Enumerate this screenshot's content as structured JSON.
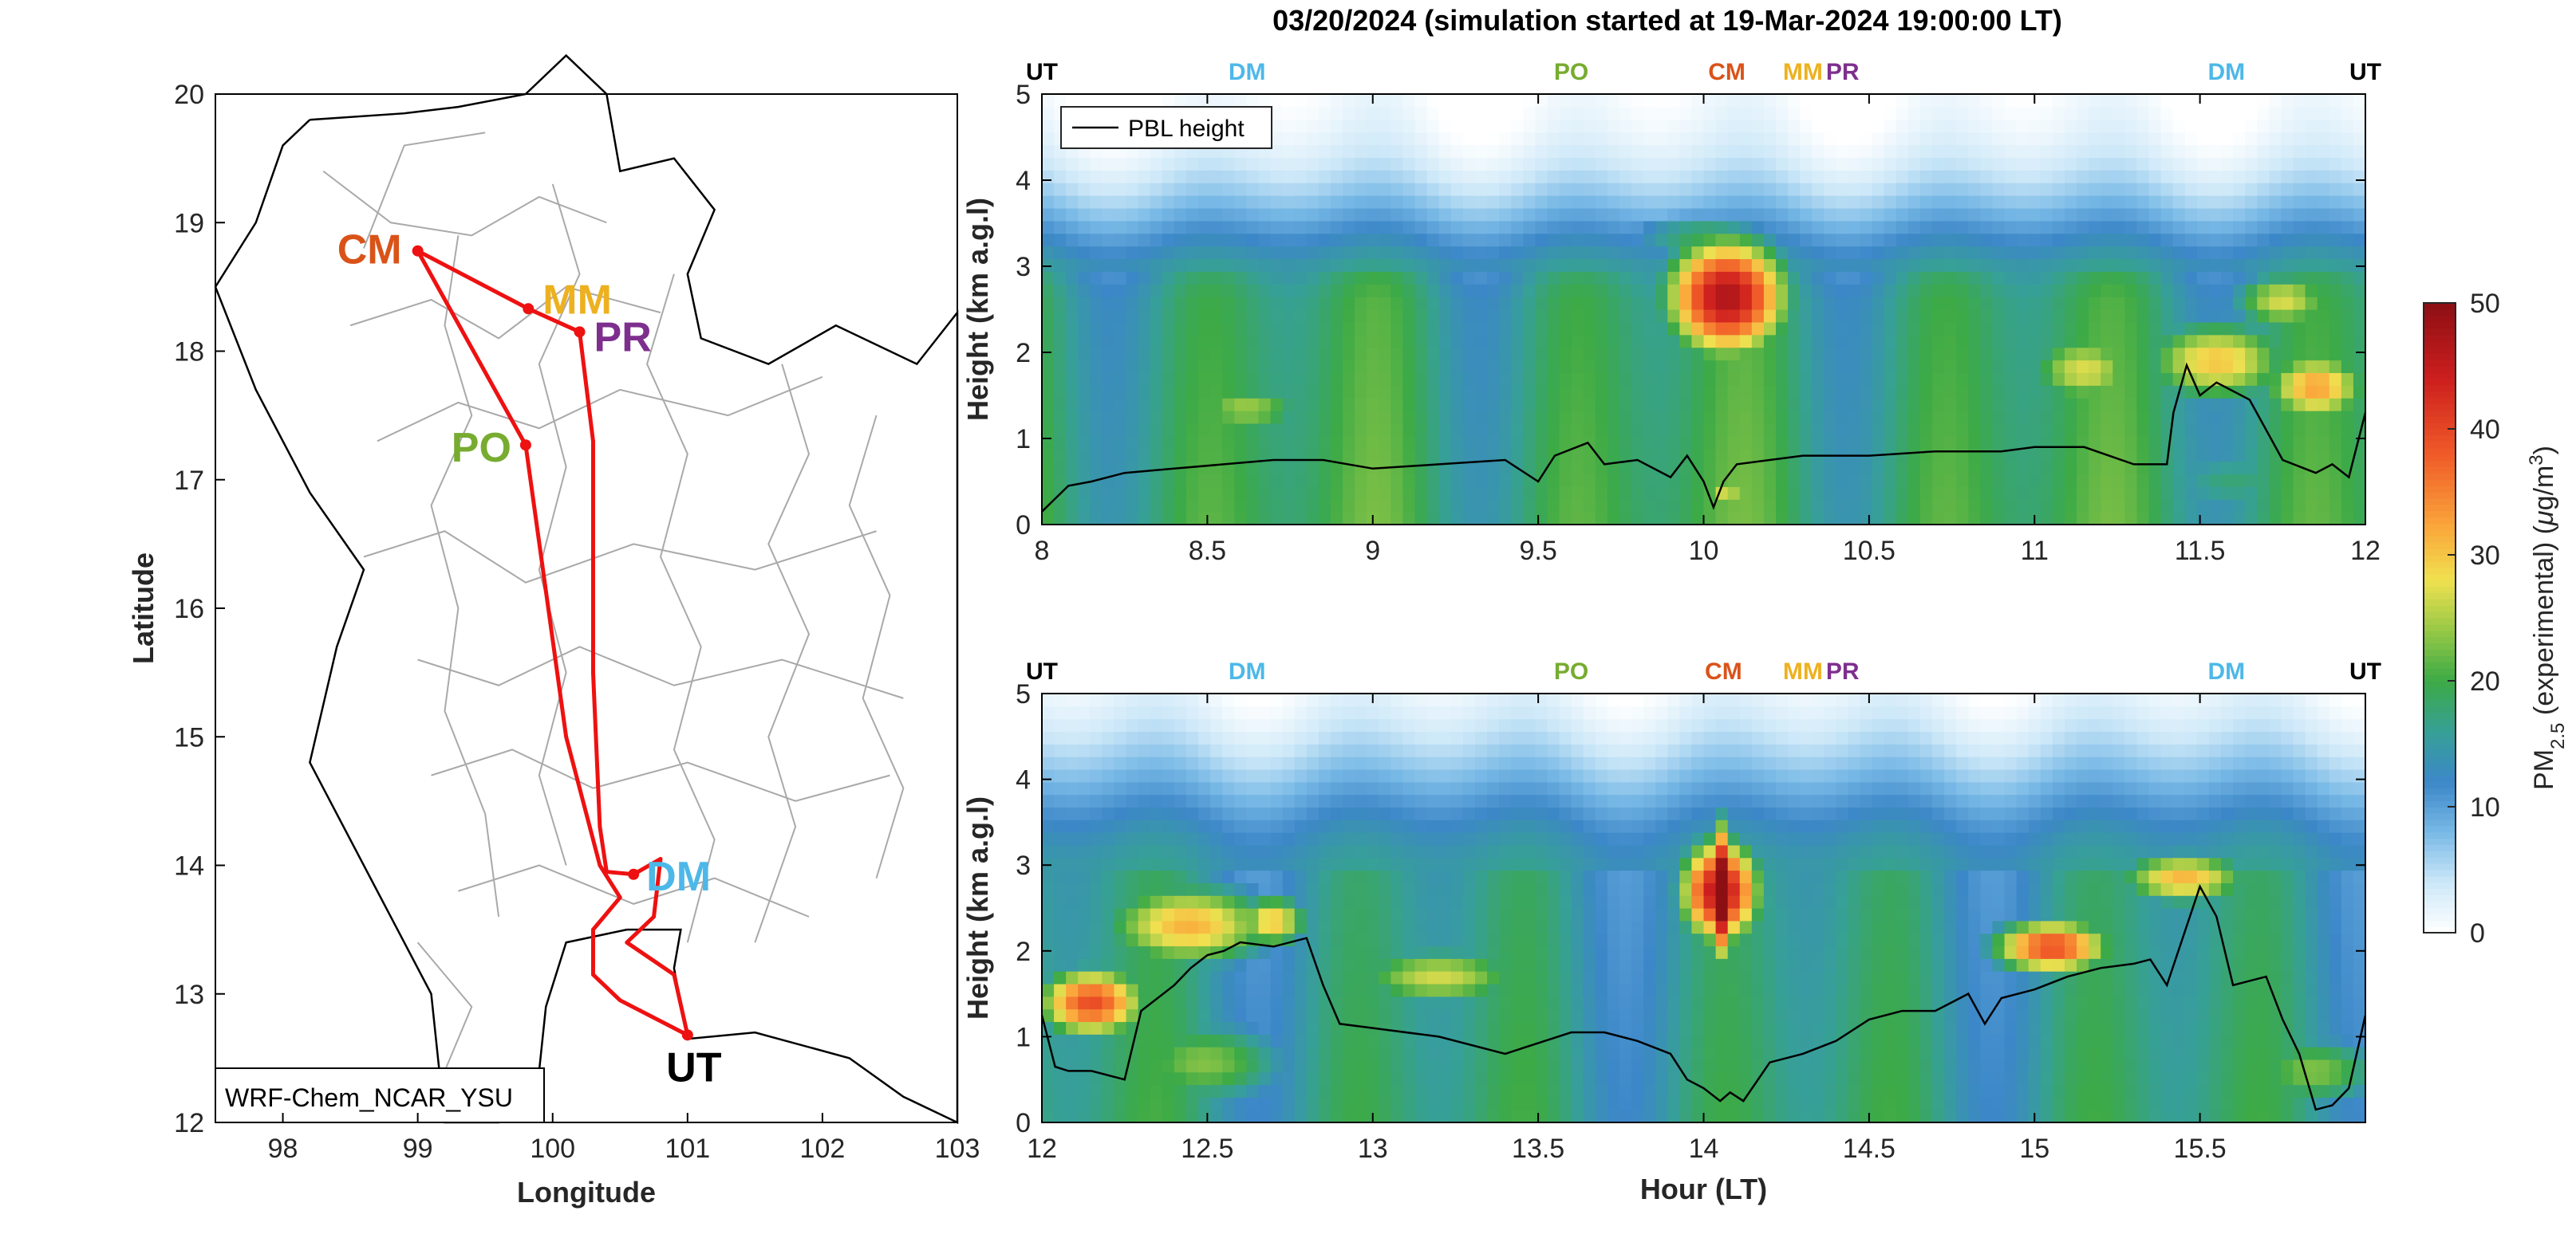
{
  "figure": {
    "title": "03/20/2024 (simulation started at 19-Mar-2024 19:00:00 LT)",
    "map_label": "WRF-Chem_NCAR_YSU"
  },
  "colors": {
    "route": "#ee1111",
    "boundary": "#a9a9a9",
    "coast": "#000000",
    "UT": "#000000",
    "DM": "#4db8e8",
    "PO": "#77ac30",
    "CM": "#d95319",
    "MM": "#edb120",
    "PR": "#7e2f8e",
    "pbl": "#000000"
  },
  "chart_data": [
    {
      "type": "map",
      "xlabel": "Longitude",
      "ylabel": "Latitude",
      "xlim": [
        97.5,
        103
      ],
      "ylim": [
        12,
        20
      ],
      "xticks": [
        "98",
        "99",
        "100",
        "101",
        "102",
        "103"
      ],
      "yticks": [
        "12",
        "13",
        "14",
        "15",
        "16",
        "17",
        "18",
        "19",
        "20"
      ],
      "stations": [
        {
          "name": "CM",
          "lon": 99.0,
          "lat": 18.78
        },
        {
          "name": "MM",
          "lon": 99.82,
          "lat": 18.33
        },
        {
          "name": "PR",
          "lon": 100.2,
          "lat": 18.15
        },
        {
          "name": "PO",
          "lon": 99.8,
          "lat": 17.27
        },
        {
          "name": "DM",
          "lon": 100.6,
          "lat": 13.93
        },
        {
          "name": "UT",
          "lon": 101.0,
          "lat": 12.68
        }
      ],
      "route": [
        [
          99.0,
          18.78
        ],
        [
          99.82,
          18.33
        ],
        [
          100.2,
          18.15
        ],
        [
          100.3,
          17.3
        ],
        [
          100.3,
          15.5
        ],
        [
          100.35,
          14.3
        ],
        [
          100.4,
          13.95
        ],
        [
          100.6,
          13.93
        ],
        [
          100.8,
          14.05
        ],
        [
          100.75,
          13.6
        ],
        [
          100.55,
          13.4
        ],
        [
          100.9,
          13.15
        ],
        [
          101.0,
          12.68
        ],
        [
          100.5,
          12.95
        ],
        [
          100.3,
          13.15
        ],
        [
          100.3,
          13.5
        ],
        [
          100.5,
          13.75
        ],
        [
          100.35,
          14.0
        ],
        [
          100.1,
          15.0
        ],
        [
          99.8,
          17.27
        ],
        [
          99.0,
          18.78
        ]
      ]
    },
    {
      "type": "heatmap",
      "title": "",
      "xlabel": "",
      "ylabel": "Height (km a.g.l)",
      "xlim": [
        8,
        12
      ],
      "ylim": [
        0,
        5
      ],
      "xticks": [
        "8",
        "8.5",
        "9",
        "9.5",
        "10",
        "10.5",
        "11",
        "11.5",
        "12"
      ],
      "yticks": [
        "0",
        "1",
        "2",
        "3",
        "4",
        "5"
      ],
      "legend": {
        "label": "PBL height",
        "position": "top-left"
      },
      "station_markers": [
        {
          "name": "UT",
          "x": 8.0
        },
        {
          "name": "DM",
          "x": 8.62
        },
        {
          "name": "PO",
          "x": 9.6
        },
        {
          "name": "CM",
          "x": 10.07
        },
        {
          "name": "MM",
          "x": 10.3
        },
        {
          "name": "PR",
          "x": 10.42
        },
        {
          "name": "DM",
          "x": 11.58
        },
        {
          "name": "UT",
          "x": 12.0
        }
      ],
      "blobs": [
        {
          "x": 10.07,
          "y": 2.65,
          "sx": 0.2,
          "sy": 0.75,
          "v": 50
        },
        {
          "x": 10.0,
          "y": 3.35,
          "sx": 0.28,
          "sy": 0.3,
          "v": 20
        },
        {
          "x": 10.07,
          "y": 0.35,
          "sx": 0.05,
          "sy": 0.2,
          "v": 30
        },
        {
          "x": 8.62,
          "y": 1.35,
          "sx": 0.22,
          "sy": 0.35,
          "v": 25
        },
        {
          "x": 8.9,
          "y": 1.4,
          "sx": 0.35,
          "sy": 0.4,
          "v": 12
        },
        {
          "x": 11.15,
          "y": 1.8,
          "sx": 0.2,
          "sy": 0.5,
          "v": 28
        },
        {
          "x": 11.55,
          "y": 1.9,
          "sx": 0.25,
          "sy": 0.55,
          "v": 32
        },
        {
          "x": 11.85,
          "y": 1.6,
          "sx": 0.18,
          "sy": 0.45,
          "v": 34
        },
        {
          "x": 11.75,
          "y": 2.6,
          "sx": 0.18,
          "sy": 0.4,
          "v": 28
        },
        {
          "x": 11.6,
          "y": 0.5,
          "sx": 0.3,
          "sy": 0.5,
          "v": 18
        }
      ],
      "base": {
        "low": 16,
        "mid_height": 2.5,
        "decay": 1.3
      },
      "pbl": {
        "x": [
          8.0,
          8.08,
          8.15,
          8.25,
          8.4,
          8.55,
          8.7,
          8.85,
          9.0,
          9.2,
          9.4,
          9.5,
          9.55,
          9.65,
          9.7,
          9.8,
          9.9,
          9.95,
          10.0,
          10.03,
          10.06,
          10.1,
          10.2,
          10.3,
          10.5,
          10.7,
          10.9,
          11.0,
          11.15,
          11.3,
          11.4,
          11.42,
          11.46,
          11.5,
          11.55,
          11.65,
          11.75,
          11.85,
          11.9,
          11.95,
          12.0
        ],
        "y": [
          0.15,
          0.45,
          0.5,
          0.6,
          0.65,
          0.7,
          0.75,
          0.75,
          0.65,
          0.7,
          0.75,
          0.5,
          0.8,
          0.95,
          0.7,
          0.75,
          0.55,
          0.8,
          0.5,
          0.2,
          0.5,
          0.7,
          0.75,
          0.8,
          0.8,
          0.85,
          0.85,
          0.9,
          0.9,
          0.7,
          0.7,
          1.3,
          1.85,
          1.5,
          1.65,
          1.45,
          0.75,
          0.6,
          0.7,
          0.55,
          1.3
        ]
      }
    },
    {
      "type": "heatmap",
      "title": "",
      "xlabel": "Hour (LT)",
      "ylabel": "Height (km a.g.l)",
      "xlim": [
        12,
        16
      ],
      "ylim": [
        0,
        5
      ],
      "xticks": [
        "12",
        "12.5",
        "13",
        "13.5",
        "14",
        "14.5",
        "15",
        "15.5"
      ],
      "yticks": [
        "0",
        "1",
        "2",
        "3",
        "4",
        "5"
      ],
      "station_markers": [
        {
          "name": "UT",
          "x": 12.0
        },
        {
          "name": "DM",
          "x": 12.62
        },
        {
          "name": "PO",
          "x": 13.6
        },
        {
          "name": "CM",
          "x": 14.06
        },
        {
          "name": "MM",
          "x": 14.3
        },
        {
          "name": "PR",
          "x": 14.42
        },
        {
          "name": "DM",
          "x": 15.58
        },
        {
          "name": "UT",
          "x": 16.0
        }
      ],
      "blobs": [
        {
          "x": 12.15,
          "y": 1.4,
          "sx": 0.18,
          "sy": 0.45,
          "v": 42
        },
        {
          "x": 12.45,
          "y": 2.3,
          "sx": 0.3,
          "sy": 0.55,
          "v": 33
        },
        {
          "x": 12.7,
          "y": 2.35,
          "sx": 0.12,
          "sy": 0.35,
          "v": 32
        },
        {
          "x": 13.2,
          "y": 1.7,
          "sx": 0.3,
          "sy": 0.4,
          "v": 28
        },
        {
          "x": 14.05,
          "y": 2.7,
          "sx": 0.13,
          "sy": 0.65,
          "v": 50
        },
        {
          "x": 14.05,
          "y": 2.7,
          "sx": 0.03,
          "sy": 0.8,
          "v": 60
        },
        {
          "x": 15.05,
          "y": 2.05,
          "sx": 0.2,
          "sy": 0.35,
          "v": 42
        },
        {
          "x": 15.45,
          "y": 2.85,
          "sx": 0.22,
          "sy": 0.35,
          "v": 33
        },
        {
          "x": 12.5,
          "y": 0.7,
          "sx": 0.3,
          "sy": 0.6,
          "v": 24
        },
        {
          "x": 15.85,
          "y": 0.6,
          "sx": 0.25,
          "sy": 0.5,
          "v": 24
        }
      ],
      "base": {
        "low": 14,
        "mid_height": 2.8,
        "decay": 1.5
      },
      "pbl": {
        "x": [
          12.0,
          12.04,
          12.08,
          12.15,
          12.25,
          12.3,
          12.4,
          12.45,
          12.5,
          12.55,
          12.6,
          12.7,
          12.8,
          12.85,
          12.9,
          13.0,
          13.2,
          13.4,
          13.6,
          13.7,
          13.8,
          13.9,
          13.95,
          14.0,
          14.05,
          14.08,
          14.12,
          14.2,
          14.3,
          14.4,
          14.5,
          14.6,
          14.7,
          14.8,
          14.85,
          14.9,
          15.0,
          15.1,
          15.2,
          15.3,
          15.35,
          15.4,
          15.5,
          15.55,
          15.6,
          15.7,
          15.75,
          15.8,
          15.85,
          15.9,
          15.95,
          16.0
        ],
        "y": [
          1.25,
          0.65,
          0.6,
          0.6,
          0.5,
          1.3,
          1.6,
          1.8,
          1.95,
          2.0,
          2.1,
          2.05,
          2.15,
          1.6,
          1.15,
          1.1,
          1.0,
          0.8,
          1.05,
          1.05,
          0.95,
          0.8,
          0.5,
          0.4,
          0.25,
          0.35,
          0.25,
          0.7,
          0.8,
          0.95,
          1.2,
          1.3,
          1.3,
          1.5,
          1.15,
          1.45,
          1.55,
          1.7,
          1.8,
          1.85,
          1.9,
          1.6,
          2.75,
          2.4,
          1.6,
          1.7,
          1.2,
          0.8,
          0.15,
          0.2,
          0.4,
          1.25
        ]
      }
    }
  ],
  "colorbar": {
    "label": "PM2.5 (experimental) (μg/m3)",
    "label_main": "PM",
    "label_sub": "2.5",
    "label_rest": " (experimental) (",
    "label_mu": "μ",
    "label_unit": "g/m",
    "label_sup": "3",
    "label_close": ")",
    "min": 0,
    "max": 50,
    "ticks": [
      "0",
      "10",
      "20",
      "30",
      "40",
      "50"
    ]
  }
}
